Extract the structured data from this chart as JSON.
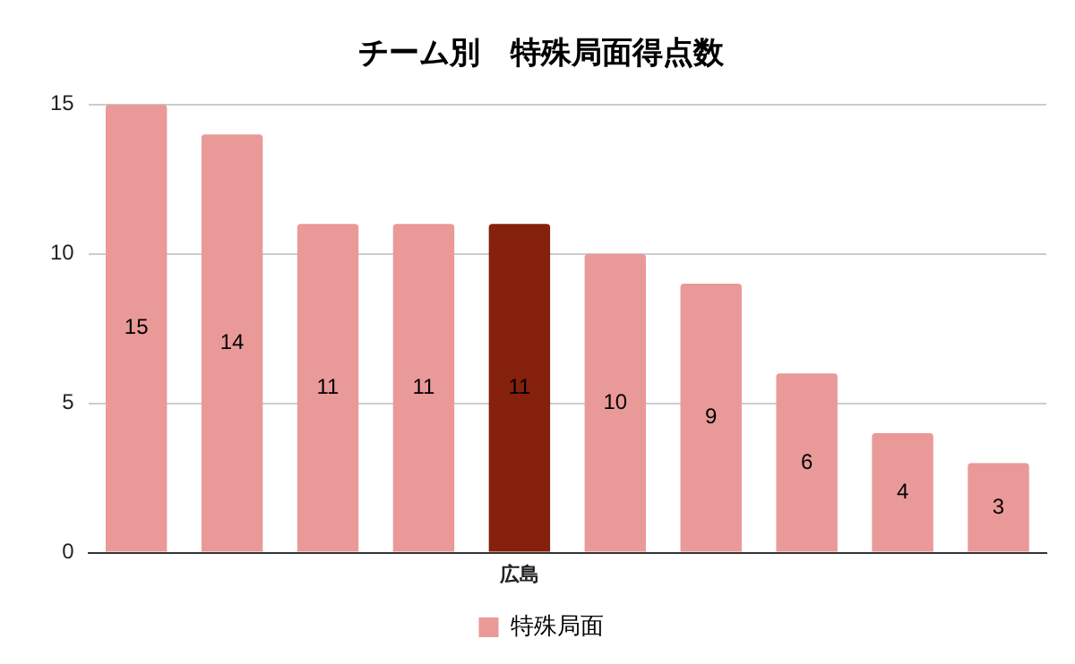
{
  "chart_data": {
    "type": "bar",
    "title": "チーム別　特殊局面得点数",
    "categories": [
      null,
      null,
      null,
      null,
      "広島",
      null,
      null,
      null,
      null,
      null
    ],
    "series": [
      {
        "name": "特殊局面",
        "color": "#ea9999",
        "colors": [
          "#ea9999",
          "#ea9999",
          "#ea9999",
          "#ea9999",
          "#85200c",
          "#ea9999",
          "#ea9999",
          "#ea9999",
          "#ea9999",
          "#ea9999"
        ],
        "values": [
          15,
          14,
          11,
          11,
          11,
          10,
          9,
          6,
          4,
          3
        ]
      }
    ],
    "ylim": [
      0,
      15
    ],
    "yticks": [
      0,
      5,
      10,
      15
    ],
    "grid": "y",
    "legend": "bottom",
    "data_labels": true
  }
}
